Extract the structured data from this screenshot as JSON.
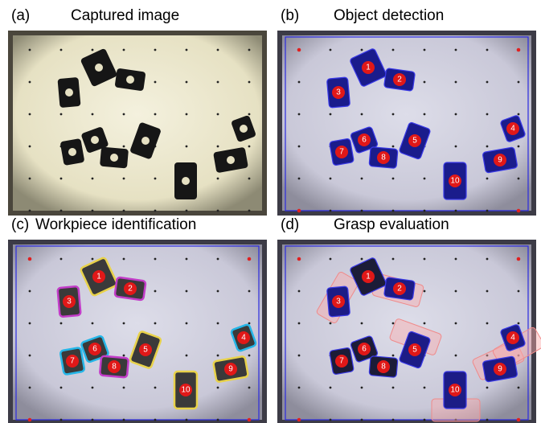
{
  "panels": [
    {
      "tag": "(a)",
      "title": "Captured image"
    },
    {
      "tag": "(b)",
      "title": "Object detection",
      "labels": [
        "1",
        "2",
        "3",
        "4",
        "5",
        "6",
        "7",
        "8",
        "9",
        "10"
      ]
    },
    {
      "tag": "(c)",
      "title": "Workpiece identification",
      "labels": [
        "1",
        "2",
        "3",
        "4",
        "5",
        "6",
        "7",
        "8",
        "9",
        "10"
      ]
    },
    {
      "tag": "(d)",
      "title": "Grasp evaluation",
      "labels": [
        "1",
        "2",
        "3",
        "4",
        "5",
        "6",
        "7",
        "8",
        "9",
        "10"
      ]
    }
  ]
}
